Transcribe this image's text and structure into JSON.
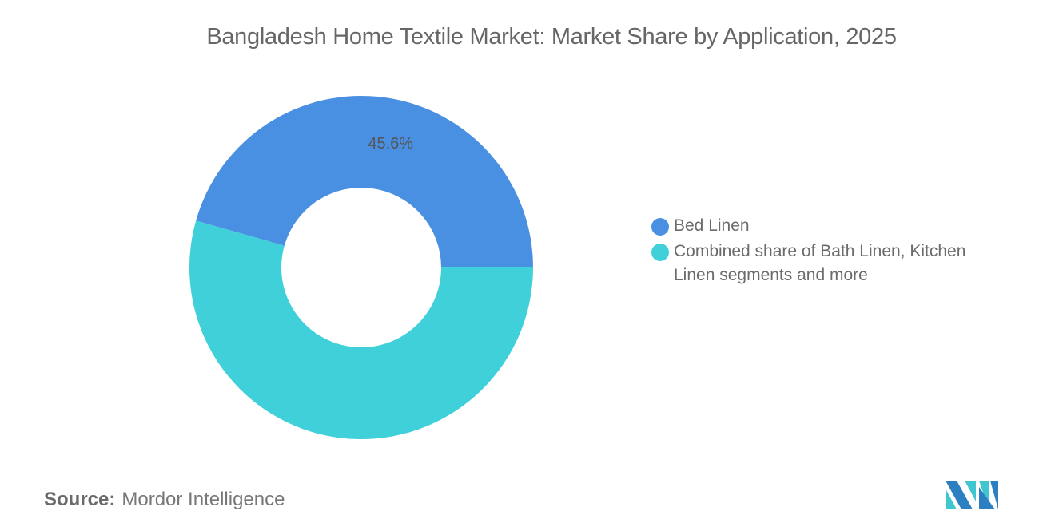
{
  "chart_data": {
    "type": "pie",
    "donut": true,
    "title": "Bangladesh Home Textile Market: Market Share by Application, 2025",
    "categories": [
      "Bed Linen",
      "Combined share of Bath Linen, Kitchen Linen segments and more"
    ],
    "values": [
      45.6,
      54.4
    ],
    "data_labels": [
      "45.6%",
      ""
    ],
    "colors": [
      "#4a90e2",
      "#3fd0da"
    ],
    "legend_position": "right"
  },
  "source": {
    "label": "Source:",
    "value": "Mordor Intelligence"
  },
  "logo": {
    "text": "MI",
    "colors": [
      "#2c7fc0",
      "#3fc6cf"
    ]
  }
}
